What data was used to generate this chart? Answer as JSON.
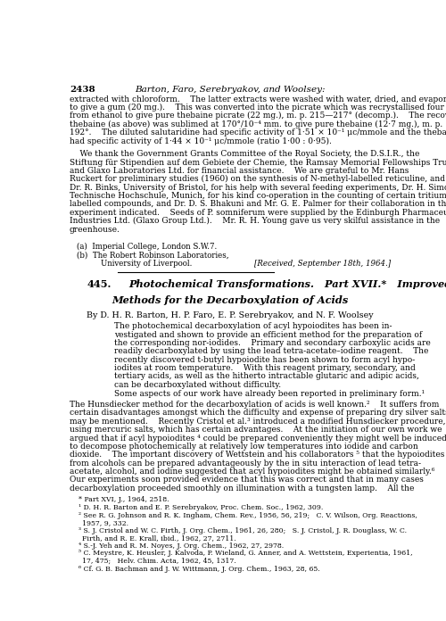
{
  "bg_color": "#ffffff",
  "page_width": 5.0,
  "page_height": 6.96,
  "dpi": 100,
  "header_number": "2438",
  "header_italic": "Barton, Faro, Serebryakov, and Woolsey:",
  "affil_a": "(a)  Imperial College, London S.W.7.",
  "affil_b": "(b)  The Robert Robinson Laboratories,",
  "affil_b2": "University of Liverpool.",
  "received": "[Received, September 18th, 1964.]",
  "article_num": "445.",
  "article_title_line1": "Photochemical Transformations.   Part XVII.*   Improved",
  "article_title_line2": "Methods for the Decarboxylation of Acids",
  "authors_line": "By D. H. R. Barton, H. P. Faro, E. P. Serebryakov, and N. F. Woolsey",
  "footnote_star": "* Part XVI, J., 1964, 2518.",
  "footnote_1": "¹ D. H. R. Barton and E. P. Serebryakov, Proc. Chem. Soc., 1962, 309.",
  "footnote_2a": "² See R. G. Johnson and R. K. Ingham, Chem. Rev., 1956, 56, 219;   C. V. Wilson, Org. Reactions,",
  "footnote_2b": "1957, 9, 332.",
  "footnote_3a": "³ S. J. Cristol and W. C. Firth, J. Org. Chem., 1961, 26, 280;   S. J. Cristol, J. R. Douglass, W. C.",
  "footnote_3b": "Firth, and R. E. Krall, ibid., 1962, 27, 2711.",
  "footnote_4": "⁴ S.-J. Yeh and R. M. Noyes, J. Org. Chem., 1962, 27, 2978.",
  "footnote_5a": "⁵ C. Meystre, K. Heusler, J. Kalvoda, P. Wieland, G. Anner, and A. Wettstein, Experientia, 1961,",
  "footnote_5b": "17, 475;   Helv. Chim. Acta, 1962, 45, 1317.",
  "footnote_6": "⁶ Cf. G. B. Bachman and J. W. Wittmann, J. Org. Chem., 1963, 28, 65."
}
